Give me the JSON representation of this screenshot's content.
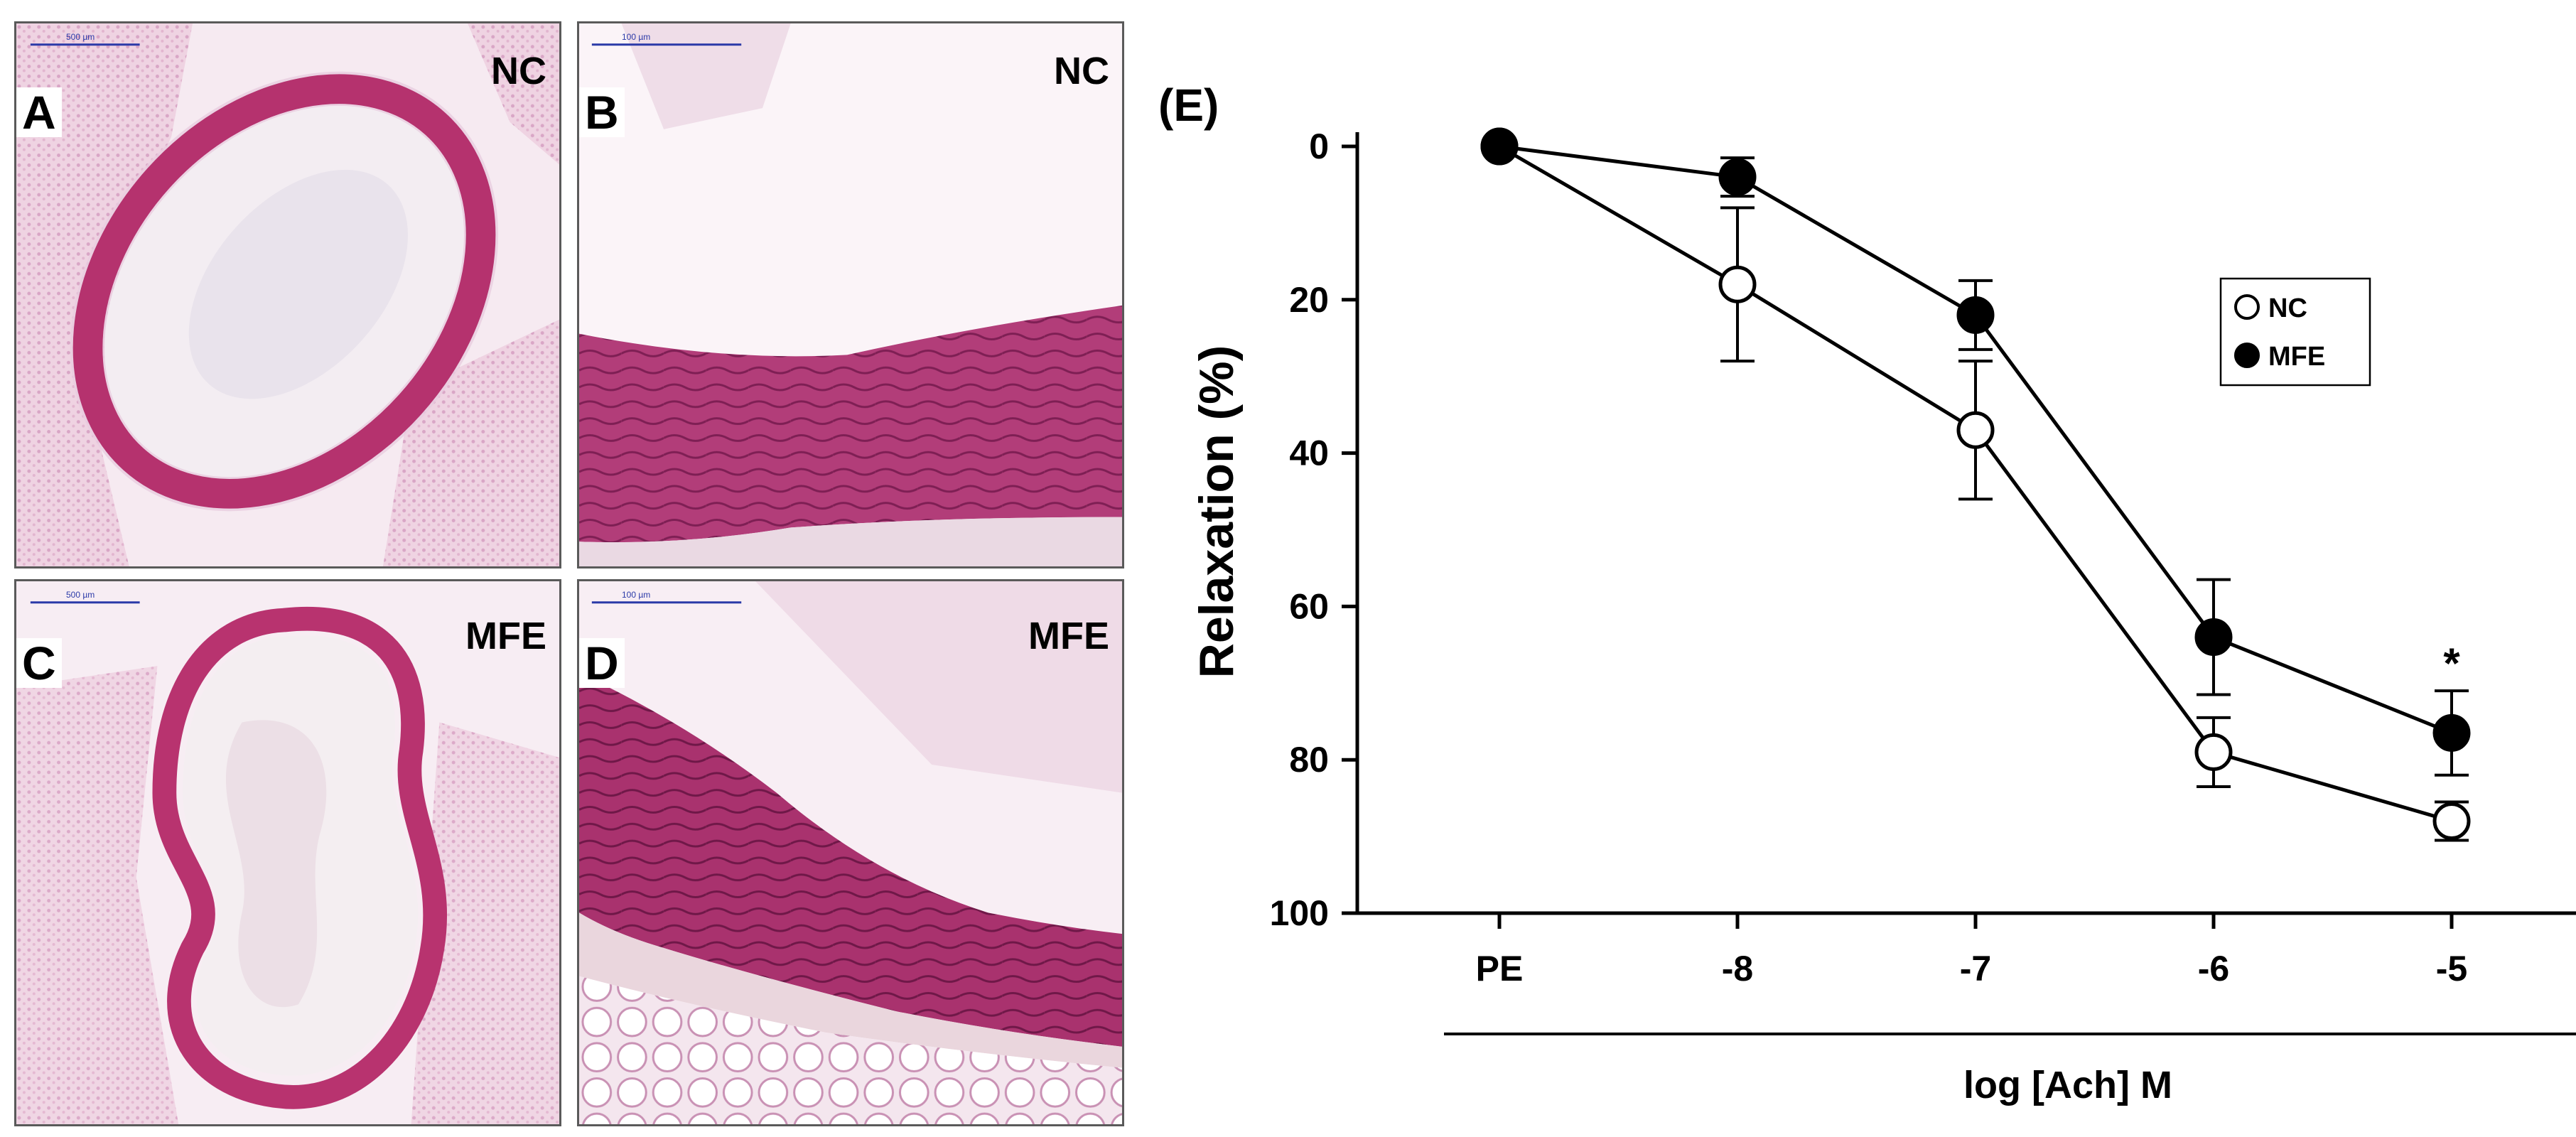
{
  "panels": [
    {
      "letter": "A",
      "group": "NC",
      "scale": "500 µm"
    },
    {
      "letter": "B",
      "group": "NC",
      "scale": "100 µm"
    },
    {
      "letter": "C",
      "group": "MFE",
      "scale": "500 µm"
    },
    {
      "letter": "D",
      "group": "MFE",
      "scale": "100 µm"
    }
  ],
  "chart_data": {
    "type": "line",
    "panel_label": "(E)",
    "categories": [
      "PE",
      "-8",
      "-7",
      "-6",
      "-5"
    ],
    "xlabel": "log [Ach] M",
    "ylabel": "Relaxation (%)",
    "ylim": [
      0,
      100
    ],
    "y_inverted": true,
    "yticks": [
      0,
      20,
      40,
      60,
      80,
      100
    ],
    "grid": false,
    "legend_position": "upper-right",
    "series": [
      {
        "name": "NC",
        "marker": "open-circle",
        "values": [
          0,
          18,
          37,
          79,
          88
        ],
        "errors": [
          0,
          10,
          9,
          4.5,
          2.5
        ]
      },
      {
        "name": "MFE",
        "marker": "filled-circle",
        "values": [
          0,
          4,
          22,
          64,
          76.5
        ],
        "errors": [
          0,
          2.5,
          4.5,
          7.5,
          5.5
        ]
      }
    ],
    "annotations": [
      {
        "text": "*",
        "category": "-5",
        "series": "MFE"
      }
    ]
  }
}
